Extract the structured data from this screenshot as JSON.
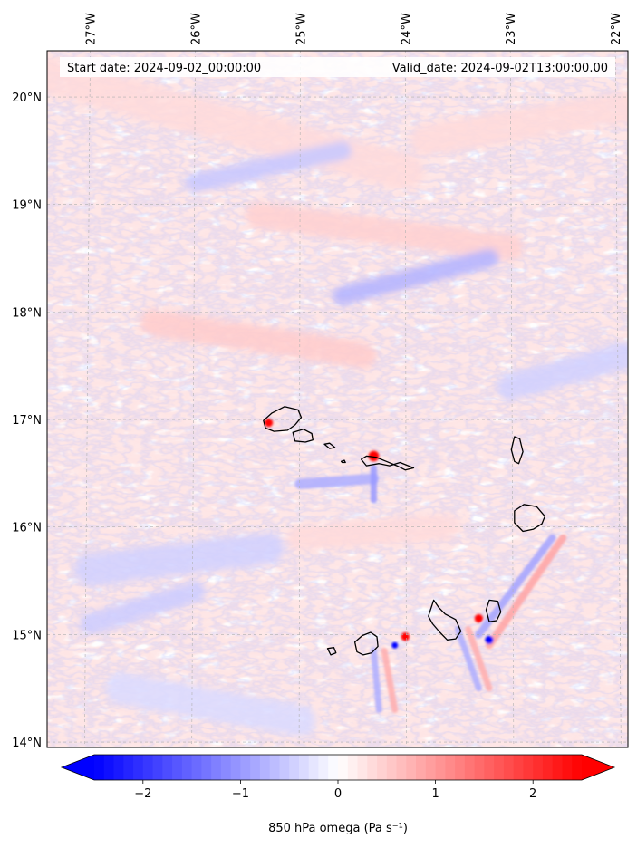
{
  "map": {
    "start_date_text": "Start date: 2024-09-02_00:00:00",
    "valid_date_text": "Valid_date: 2024-09-02T13:00:00.00",
    "extent": {
      "lon_min": -27.41,
      "lon_max": -21.88,
      "lat_min": 13.95,
      "lat_max": 20.43
    },
    "gridlines": true,
    "lon_ticks": [
      {
        "value": -27,
        "label": "27°W"
      },
      {
        "value": -26,
        "label": "26°W"
      },
      {
        "value": -25,
        "label": "25°W"
      },
      {
        "value": -24,
        "label": "24°W"
      },
      {
        "value": -23,
        "label": "23°W"
      },
      {
        "value": -22,
        "label": "22°W"
      }
    ],
    "lat_ticks": [
      {
        "value": 20,
        "label": "20°N"
      },
      {
        "value": 19,
        "label": "19°N"
      },
      {
        "value": 18,
        "label": "18°N"
      },
      {
        "value": 17,
        "label": "17°N"
      },
      {
        "value": 16,
        "label": "16°N"
      },
      {
        "value": 15,
        "label": "15°N"
      },
      {
        "value": 14,
        "label": "14°N"
      }
    ],
    "field": {
      "variable": "850 hPa omega",
      "colormap": "bwr",
      "low_color": "#0000ff",
      "mid_color": "#ffffff",
      "high_color": "#ff0000",
      "vmin": -2.5,
      "vmax": 2.5,
      "features": [
        {
          "kind": "band",
          "lon1": -27.4,
          "lat1": 20.2,
          "lon2": -24.0,
          "lat2": 19.3,
          "width_deg": 0.35,
          "value": 0.35
        },
        {
          "kind": "band",
          "lon1": -26.0,
          "lat1": 19.2,
          "lon2": -24.6,
          "lat2": 19.5,
          "width_deg": 0.18,
          "value": -0.55
        },
        {
          "kind": "band",
          "lon1": -25.4,
          "lat1": 18.9,
          "lon2": -23.0,
          "lat2": 18.6,
          "width_deg": 0.25,
          "value": 0.45
        },
        {
          "kind": "band",
          "lon1": -24.6,
          "lat1": 18.15,
          "lon2": -23.2,
          "lat2": 18.5,
          "width_deg": 0.18,
          "value": -0.75
        },
        {
          "kind": "band",
          "lon1": -23.8,
          "lat1": 19.6,
          "lon2": -21.9,
          "lat2": 19.9,
          "width_deg": 0.3,
          "value": 0.35
        },
        {
          "kind": "band",
          "lon1": -26.4,
          "lat1": 17.9,
          "lon2": -24.4,
          "lat2": 17.6,
          "width_deg": 0.25,
          "value": 0.5
        },
        {
          "kind": "band",
          "lon1": -23.0,
          "lat1": 17.3,
          "lon2": -21.9,
          "lat2": 17.6,
          "width_deg": 0.25,
          "value": -0.45
        },
        {
          "kind": "band",
          "lon1": -27.0,
          "lat1": 15.6,
          "lon2": -25.3,
          "lat2": 15.8,
          "width_deg": 0.3,
          "value": -0.45
        },
        {
          "kind": "band",
          "lon1": -27.0,
          "lat1": 15.1,
          "lon2": -26.0,
          "lat2": 15.4,
          "width_deg": 0.2,
          "value": -0.5
        },
        {
          "kind": "band",
          "lon1": -25.0,
          "lat1": 15.9,
          "lon2": -23.6,
          "lat2": 16.0,
          "width_deg": 0.25,
          "value": 0.35
        },
        {
          "kind": "band",
          "lon1": -26.7,
          "lat1": 14.5,
          "lon2": -25.0,
          "lat2": 14.2,
          "width_deg": 0.3,
          "value": -0.35
        },
        {
          "kind": "band",
          "lon1": -25.0,
          "lat1": 16.4,
          "lon2": -24.3,
          "lat2": 16.45,
          "width_deg": 0.1,
          "value": -0.8
        },
        {
          "kind": "band",
          "lon1": -22.6,
          "lat1": 15.9,
          "lon2": -23.3,
          "lat2": 15.0,
          "width_deg": 0.07,
          "value": -0.9
        },
        {
          "kind": "band",
          "lon1": -22.5,
          "lat1": 15.9,
          "lon2": -23.2,
          "lat2": 14.9,
          "width_deg": 0.07,
          "value": 0.9
        },
        {
          "kind": "band",
          "lon1": -24.3,
          "lat1": 16.55,
          "lon2": -24.3,
          "lat2": 16.25,
          "width_deg": 0.06,
          "value": -1.0
        },
        {
          "kind": "band",
          "lon1": -24.2,
          "lat1": 14.85,
          "lon2": -24.1,
          "lat2": 14.3,
          "width_deg": 0.06,
          "value": 0.8
        },
        {
          "kind": "band",
          "lon1": -24.3,
          "lat1": 14.85,
          "lon2": -24.25,
          "lat2": 14.3,
          "width_deg": 0.06,
          "value": -0.8
        },
        {
          "kind": "band",
          "lon1": -23.5,
          "lat1": 15.05,
          "lon2": -23.3,
          "lat2": 14.5,
          "width_deg": 0.06,
          "value": -0.8
        },
        {
          "kind": "band",
          "lon1": -23.4,
          "lat1": 15.05,
          "lon2": -23.2,
          "lat2": 14.5,
          "width_deg": 0.06,
          "value": 0.8
        },
        {
          "kind": "spot",
          "lon": -24.3,
          "lat": 16.66,
          "radius_deg": 0.05,
          "value": 2.5
        },
        {
          "kind": "spot",
          "lon": -25.3,
          "lat": 16.97,
          "radius_deg": 0.04,
          "value": 2.5
        },
        {
          "kind": "spot",
          "lon": -24.0,
          "lat": 14.98,
          "radius_deg": 0.04,
          "value": 2.5
        },
        {
          "kind": "spot",
          "lon": -24.1,
          "lat": 14.9,
          "radius_deg": 0.03,
          "value": -2.5
        },
        {
          "kind": "spot",
          "lon": -23.2,
          "lat": 14.95,
          "radius_deg": 0.04,
          "value": -2.5
        },
        {
          "kind": "spot",
          "lon": -23.3,
          "lat": 15.15,
          "radius_deg": 0.04,
          "value": 2.5
        }
      ]
    },
    "coastline_color": "#000000",
    "islands": [
      {
        "name": "Santo Antão",
        "coords": [
          [
            -25.35,
            16.99
          ],
          [
            -25.27,
            17.06
          ],
          [
            -25.15,
            17.12
          ],
          [
            -25.02,
            17.09
          ],
          [
            -24.99,
            17.02
          ],
          [
            -25.05,
            16.95
          ],
          [
            -25.12,
            16.9
          ],
          [
            -25.25,
            16.89
          ],
          [
            -25.33,
            16.92
          ]
        ]
      },
      {
        "name": "São Vicente",
        "coords": [
          [
            -25.07,
            16.88
          ],
          [
            -24.97,
            16.91
          ],
          [
            -24.89,
            16.87
          ],
          [
            -24.88,
            16.81
          ],
          [
            -24.95,
            16.79
          ],
          [
            -25.05,
            16.8
          ]
        ]
      },
      {
        "name": "Santa Luzia",
        "coords": [
          [
            -24.77,
            16.77
          ],
          [
            -24.72,
            16.78
          ],
          [
            -24.67,
            16.74
          ],
          [
            -24.72,
            16.73
          ]
        ]
      },
      {
        "name": "São Nicolau",
        "coords": [
          [
            -24.42,
            16.63
          ],
          [
            -24.37,
            16.66
          ],
          [
            -24.28,
            16.65
          ],
          [
            -24.18,
            16.61
          ],
          [
            -24.08,
            16.57
          ],
          [
            -24.0,
            16.53
          ],
          [
            -23.92,
            16.55
          ],
          [
            -24.05,
            16.6
          ],
          [
            -24.15,
            16.57
          ],
          [
            -24.25,
            16.59
          ],
          [
            -24.37,
            16.57
          ]
        ]
      },
      {
        "name": "Raso",
        "coords": [
          [
            -24.61,
            16.61
          ],
          [
            -24.58,
            16.62
          ],
          [
            -24.57,
            16.6
          ],
          [
            -24.6,
            16.6
          ]
        ]
      },
      {
        "name": "Sal",
        "coords": [
          [
            -22.96,
            16.84
          ],
          [
            -22.91,
            16.82
          ],
          [
            -22.88,
            16.7
          ],
          [
            -22.92,
            16.59
          ],
          [
            -22.96,
            16.61
          ],
          [
            -22.99,
            16.72
          ]
        ]
      },
      {
        "name": "Boa Vista",
        "coords": [
          [
            -22.96,
            16.15
          ],
          [
            -22.87,
            16.21
          ],
          [
            -22.75,
            16.19
          ],
          [
            -22.67,
            16.1
          ],
          [
            -22.7,
            16.03
          ],
          [
            -22.78,
            15.98
          ],
          [
            -22.88,
            15.96
          ],
          [
            -22.96,
            16.04
          ]
        ]
      },
      {
        "name": "Maio",
        "coords": [
          [
            -23.2,
            15.32
          ],
          [
            -23.12,
            15.31
          ],
          [
            -23.09,
            15.21
          ],
          [
            -23.13,
            15.13
          ],
          [
            -23.2,
            15.12
          ],
          [
            -23.23,
            15.23
          ]
        ]
      },
      {
        "name": "Santiago",
        "coords": [
          [
            -23.73,
            15.32
          ],
          [
            -23.68,
            15.25
          ],
          [
            -23.62,
            15.19
          ],
          [
            -23.52,
            15.14
          ],
          [
            -23.47,
            15.03
          ],
          [
            -23.52,
            14.96
          ],
          [
            -23.6,
            14.95
          ],
          [
            -23.67,
            15.02
          ],
          [
            -23.74,
            15.1
          ],
          [
            -23.78,
            15.17
          ]
        ]
      },
      {
        "name": "Fogo",
        "coords": [
          [
            -24.48,
            14.93
          ],
          [
            -24.41,
            14.99
          ],
          [
            -24.33,
            15.02
          ],
          [
            -24.27,
            14.98
          ],
          [
            -24.26,
            14.89
          ],
          [
            -24.32,
            14.83
          ],
          [
            -24.4,
            14.81
          ],
          [
            -24.46,
            14.84
          ]
        ]
      },
      {
        "name": "Brava",
        "coords": [
          [
            -24.74,
            14.87
          ],
          [
            -24.68,
            14.88
          ],
          [
            -24.66,
            14.83
          ],
          [
            -24.71,
            14.81
          ]
        ]
      }
    ]
  },
  "colorbar": {
    "label": "850 hPa omega (Pa s⁻¹)",
    "vmin": -2.5,
    "vmax": 2.5,
    "n_levels": 50,
    "extend": "both",
    "ticks": [
      {
        "value": -2,
        "label": "−2"
      },
      {
        "value": -1,
        "label": "−1"
      },
      {
        "value": 0,
        "label": "0"
      },
      {
        "value": 1,
        "label": "1"
      },
      {
        "value": 2,
        "label": "2"
      }
    ]
  }
}
